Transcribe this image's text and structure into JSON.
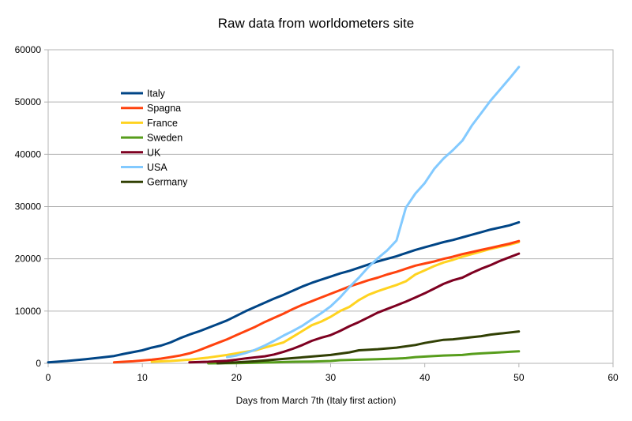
{
  "chart_data": {
    "type": "line",
    "title": "Raw data from worldometers site",
    "xlabel": "Days from March 7th (Italy first action)",
    "ylabel": "",
    "xlim": [
      0,
      60
    ],
    "ylim": [
      0,
      60000
    ],
    "x_ticks": [
      0,
      10,
      20,
      30,
      40,
      50,
      60
    ],
    "y_ticks": [
      0,
      10000,
      20000,
      30000,
      40000,
      50000,
      60000
    ],
    "grid": "horizontal",
    "legend_position": "top-left",
    "series": [
      {
        "name": "Italy",
        "color": "#004586",
        "points": [
          [
            0,
            200
          ],
          [
            2,
            450
          ],
          [
            4,
            800
          ],
          [
            6,
            1200
          ],
          [
            7,
            1400
          ],
          [
            8,
            1800
          ],
          [
            10,
            2500
          ],
          [
            11,
            3000
          ],
          [
            12,
            3400
          ],
          [
            13,
            4000
          ],
          [
            14,
            4800
          ],
          [
            15,
            5500
          ],
          [
            16,
            6100
          ],
          [
            17,
            6800
          ],
          [
            18,
            7500
          ],
          [
            19,
            8200
          ],
          [
            20,
            9100
          ],
          [
            21,
            10000
          ],
          [
            22,
            10800
          ],
          [
            23,
            11600
          ],
          [
            24,
            12400
          ],
          [
            25,
            13100
          ],
          [
            26,
            13900
          ],
          [
            27,
            14700
          ],
          [
            28,
            15400
          ],
          [
            29,
            16000
          ],
          [
            30,
            16600
          ],
          [
            31,
            17200
          ],
          [
            32,
            17700
          ],
          [
            33,
            18300
          ],
          [
            34,
            18900
          ],
          [
            35,
            19500
          ],
          [
            36,
            20000
          ],
          [
            37,
            20500
          ],
          [
            38,
            21100
          ],
          [
            39,
            21700
          ],
          [
            40,
            22200
          ],
          [
            41,
            22700
          ],
          [
            42,
            23200
          ],
          [
            43,
            23600
          ],
          [
            44,
            24100
          ],
          [
            45,
            24600
          ],
          [
            46,
            25100
          ],
          [
            47,
            25600
          ],
          [
            48,
            26000
          ],
          [
            49,
            26400
          ],
          [
            50,
            27000
          ]
        ]
      },
      {
        "name": "Spagna",
        "color": "#ff420e",
        "points": [
          [
            7,
            200
          ],
          [
            8,
            300
          ],
          [
            9,
            400
          ],
          [
            10,
            550
          ],
          [
            11,
            700
          ],
          [
            12,
            900
          ],
          [
            13,
            1200
          ],
          [
            14,
            1500
          ],
          [
            15,
            1900
          ],
          [
            16,
            2500
          ],
          [
            17,
            3200
          ],
          [
            18,
            3900
          ],
          [
            19,
            4600
          ],
          [
            20,
            5400
          ],
          [
            21,
            6200
          ],
          [
            22,
            7000
          ],
          [
            23,
            7900
          ],
          [
            24,
            8700
          ],
          [
            25,
            9500
          ],
          [
            26,
            10400
          ],
          [
            27,
            11200
          ],
          [
            28,
            11900
          ],
          [
            29,
            12600
          ],
          [
            30,
            13300
          ],
          [
            31,
            14000
          ],
          [
            32,
            14700
          ],
          [
            33,
            15300
          ],
          [
            34,
            15900
          ],
          [
            35,
            16400
          ],
          [
            36,
            17000
          ],
          [
            37,
            17500
          ],
          [
            38,
            18100
          ],
          [
            39,
            18700
          ],
          [
            40,
            19100
          ],
          [
            41,
            19500
          ],
          [
            42,
            20000
          ],
          [
            43,
            20400
          ],
          [
            44,
            20900
          ],
          [
            45,
            21300
          ],
          [
            46,
            21700
          ],
          [
            47,
            22100
          ],
          [
            48,
            22500
          ],
          [
            49,
            22900
          ],
          [
            50,
            23400
          ]
        ]
      },
      {
        "name": "France",
        "color": "#ffd320",
        "points": [
          [
            11,
            300
          ],
          [
            13,
            450
          ],
          [
            15,
            700
          ],
          [
            17,
            1100
          ],
          [
            19,
            1600
          ],
          [
            20,
            1900
          ],
          [
            21,
            2200
          ],
          [
            22,
            2500
          ],
          [
            23,
            3000
          ],
          [
            24,
            3500
          ],
          [
            25,
            4000
          ],
          [
            26,
            5100
          ],
          [
            27,
            6200
          ],
          [
            28,
            7300
          ],
          [
            29,
            8000
          ],
          [
            30,
            8900
          ],
          [
            31,
            10000
          ],
          [
            32,
            10800
          ],
          [
            33,
            12100
          ],
          [
            34,
            13100
          ],
          [
            35,
            13800
          ],
          [
            36,
            14400
          ],
          [
            37,
            15000
          ],
          [
            38,
            15700
          ],
          [
            39,
            17000
          ],
          [
            40,
            17800
          ],
          [
            41,
            18600
          ],
          [
            42,
            19300
          ],
          [
            43,
            19800
          ],
          [
            44,
            20400
          ],
          [
            45,
            20900
          ],
          [
            46,
            21400
          ],
          [
            47,
            21900
          ],
          [
            48,
            22300
          ],
          [
            49,
            22700
          ],
          [
            50,
            23200
          ]
        ]
      },
      {
        "name": "Sweden",
        "color": "#579d1c",
        "points": [
          [
            17,
            0
          ],
          [
            20,
            50
          ],
          [
            22,
            100
          ],
          [
            24,
            200
          ],
          [
            26,
            300
          ],
          [
            28,
            350
          ],
          [
            30,
            450
          ],
          [
            31,
            600
          ],
          [
            33,
            700
          ],
          [
            35,
            800
          ],
          [
            37,
            900
          ],
          [
            38,
            1000
          ],
          [
            39,
            1200
          ],
          [
            41,
            1400
          ],
          [
            42,
            1500
          ],
          [
            44,
            1600
          ],
          [
            45,
            1800
          ],
          [
            46,
            1900
          ],
          [
            47,
            2000
          ],
          [
            48,
            2100
          ],
          [
            49,
            2200
          ],
          [
            50,
            2300
          ]
        ]
      },
      {
        "name": "UK",
        "color": "#7e0021",
        "points": [
          [
            15,
            200
          ],
          [
            17,
            300
          ],
          [
            19,
            500
          ],
          [
            20,
            700
          ],
          [
            21,
            950
          ],
          [
            22,
            1150
          ],
          [
            23,
            1350
          ],
          [
            24,
            1700
          ],
          [
            25,
            2200
          ],
          [
            26,
            2800
          ],
          [
            27,
            3500
          ],
          [
            28,
            4300
          ],
          [
            29,
            4900
          ],
          [
            30,
            5400
          ],
          [
            31,
            6200
          ],
          [
            32,
            7100
          ],
          [
            33,
            7900
          ],
          [
            34,
            8800
          ],
          [
            35,
            9700
          ],
          [
            36,
            10400
          ],
          [
            37,
            11100
          ],
          [
            38,
            11800
          ],
          [
            39,
            12600
          ],
          [
            40,
            13400
          ],
          [
            41,
            14300
          ],
          [
            42,
            15200
          ],
          [
            43,
            15900
          ],
          [
            44,
            16400
          ],
          [
            45,
            17300
          ],
          [
            46,
            18100
          ],
          [
            47,
            18800
          ],
          [
            48,
            19600
          ],
          [
            49,
            20300
          ],
          [
            50,
            21000
          ]
        ]
      },
      {
        "name": "USA",
        "color": "#83caff",
        "points": [
          [
            19,
            1200
          ],
          [
            20,
            1500
          ],
          [
            21,
            2000
          ],
          [
            22,
            2600
          ],
          [
            23,
            3400
          ],
          [
            24,
            4300
          ],
          [
            25,
            5300
          ],
          [
            26,
            6200
          ],
          [
            27,
            7200
          ],
          [
            28,
            8400
          ],
          [
            29,
            9600
          ],
          [
            30,
            10900
          ],
          [
            31,
            12600
          ],
          [
            32,
            14600
          ],
          [
            33,
            16400
          ],
          [
            34,
            18400
          ],
          [
            35,
            20100
          ],
          [
            36,
            21600
          ],
          [
            37,
            23500
          ],
          [
            38,
            29800
          ],
          [
            39,
            32500
          ],
          [
            40,
            34500
          ],
          [
            41,
            37200
          ],
          [
            42,
            39200
          ],
          [
            43,
            40800
          ],
          [
            44,
            42600
          ],
          [
            45,
            45500
          ],
          [
            46,
            47900
          ],
          [
            47,
            50300
          ],
          [
            48,
            52400
          ],
          [
            49,
            54500
          ],
          [
            50,
            56700
          ]
        ]
      },
      {
        "name": "Germany",
        "color": "#314004",
        "points": [
          [
            18,
            0
          ],
          [
            20,
            200
          ],
          [
            22,
            400
          ],
          [
            24,
            700
          ],
          [
            26,
            1000
          ],
          [
            28,
            1300
          ],
          [
            30,
            1600
          ],
          [
            32,
            2100
          ],
          [
            33,
            2500
          ],
          [
            35,
            2700
          ],
          [
            37,
            3000
          ],
          [
            39,
            3500
          ],
          [
            40,
            3900
          ],
          [
            41,
            4200
          ],
          [
            42,
            4500
          ],
          [
            43,
            4600
          ],
          [
            44,
            4800
          ],
          [
            45,
            5000
          ],
          [
            46,
            5200
          ],
          [
            47,
            5500
          ],
          [
            48,
            5700
          ],
          [
            49,
            5900
          ],
          [
            50,
            6100
          ]
        ]
      }
    ]
  }
}
